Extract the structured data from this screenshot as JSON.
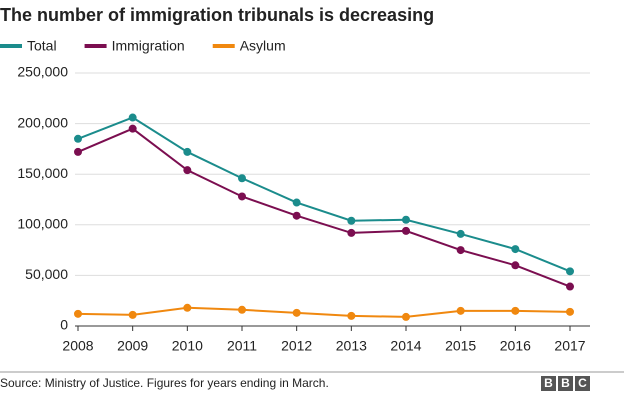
{
  "chart_data": {
    "type": "line",
    "title": "The number of immigration tribunals is decreasing",
    "x": [
      2008,
      2009,
      2010,
      2011,
      2012,
      2013,
      2014,
      2015,
      2016,
      2017
    ],
    "series": [
      {
        "name": "Total",
        "color": "#1b8c8c",
        "values": [
          185000,
          206000,
          172000,
          146000,
          122000,
          104000,
          105000,
          91000,
          76000,
          54000
        ]
      },
      {
        "name": "Immigration",
        "color": "#7b0e50",
        "values": [
          172000,
          195000,
          154000,
          128000,
          109000,
          92000,
          94000,
          75000,
          60000,
          39000
        ]
      },
      {
        "name": "Asylum",
        "color": "#f0880f",
        "values": [
          12000,
          11000,
          18000,
          16000,
          13000,
          10000,
          9000,
          15000,
          15000,
          14000
        ]
      }
    ],
    "xlim": [
      2008,
      2017
    ],
    "xticks": [
      2008,
      2009,
      2010,
      2011,
      2012,
      2013,
      2014,
      2015,
      2016,
      2017
    ],
    "ylim": [
      0,
      250000
    ],
    "yticks": [
      0,
      {
        "value": 50000,
        "label": "50,000"
      },
      {
        "value": 100000,
        "label": "100,000"
      },
      {
        "value": 150000,
        "label": "150,000"
      },
      {
        "value": 200000,
        "label": "200,000"
      },
      {
        "value": 250000,
        "label": "250,000"
      }
    ],
    "grid": true,
    "source": "Source: Ministry of Justice. Figures for years ending in March.",
    "logo": [
      "B",
      "B",
      "C"
    ]
  }
}
